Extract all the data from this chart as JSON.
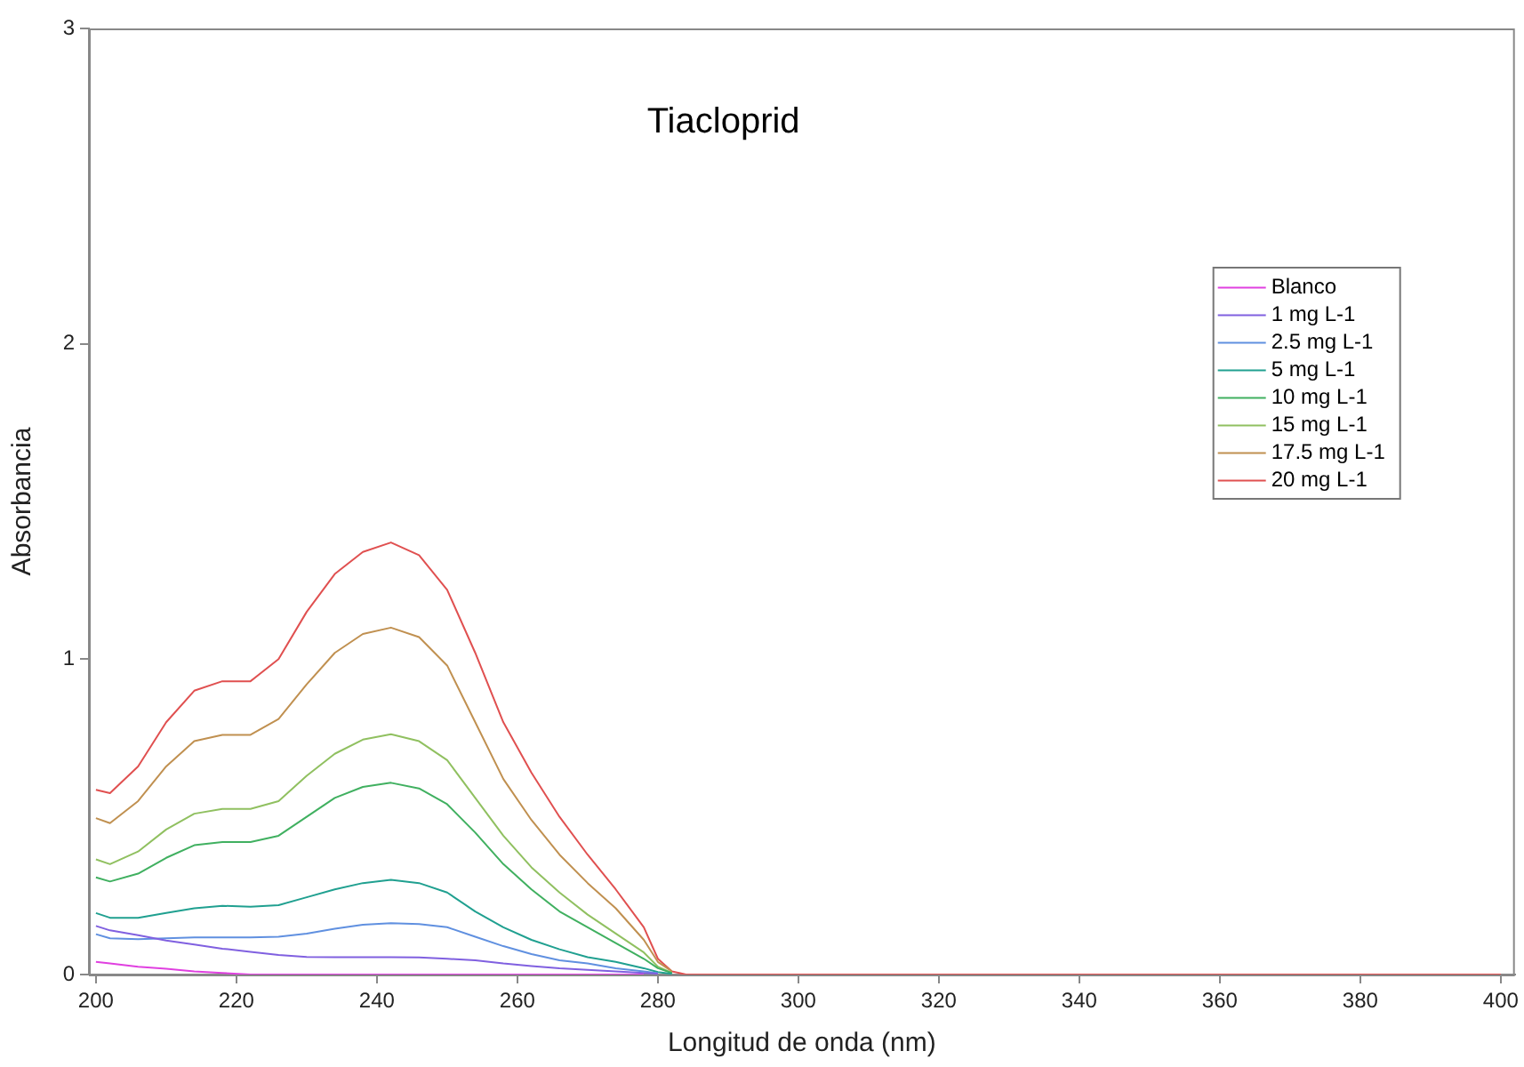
{
  "chart_data": {
    "type": "line",
    "title": "Tiacloprid",
    "xlabel": "Longitud de onda (nm)",
    "ylabel": "Absorbancia",
    "x": [
      200,
      202,
      206,
      210,
      214,
      218,
      222,
      226,
      230,
      234,
      238,
      242,
      246,
      250,
      254,
      258,
      262,
      266,
      270,
      274,
      278,
      280,
      282,
      284,
      286,
      290,
      300,
      320,
      340,
      360,
      380,
      400
    ],
    "series": [
      {
        "name": "Blanco",
        "color": "#e040e0",
        "values": [
          0.04,
          0.035,
          0.025,
          0.018,
          0.01,
          0.005,
          0,
          0,
          0,
          0,
          0,
          0,
          0,
          0,
          0,
          0,
          0,
          0,
          0,
          0,
          0,
          null,
          null,
          null,
          null,
          null,
          null,
          null,
          null,
          null,
          null,
          null
        ]
      },
      {
        "name": "1 mg L-1",
        "color": "#8060e0",
        "values": [
          0.154,
          0.14,
          0.125,
          0.108,
          0.095,
          0.082,
          0.072,
          0.062,
          0.056,
          0.055,
          0.055,
          0.055,
          0.054,
          0.05,
          0.045,
          0.035,
          0.027,
          0.02,
          0.015,
          0.01,
          0.005,
          0.003,
          null,
          null,
          null,
          null,
          null,
          null,
          null,
          null,
          null,
          null
        ]
      },
      {
        "name": "2.5 mg L-1",
        "color": "#6090e0",
        "values": [
          0.128,
          0.115,
          0.112,
          0.115,
          0.118,
          0.118,
          0.118,
          0.12,
          0.13,
          0.145,
          0.158,
          0.163,
          0.16,
          0.15,
          0.12,
          0.09,
          0.065,
          0.045,
          0.035,
          0.02,
          0.01,
          0.004,
          null,
          null,
          null,
          null,
          null,
          null,
          null,
          null,
          null,
          null
        ]
      },
      {
        "name": "5 mg L-1",
        "color": "#20a090",
        "values": [
          0.195,
          0.18,
          0.18,
          0.195,
          0.21,
          0.218,
          0.215,
          0.22,
          0.245,
          0.27,
          0.29,
          0.3,
          0.29,
          0.26,
          0.2,
          0.15,
          0.11,
          0.08,
          0.055,
          0.04,
          0.02,
          0.008,
          0.002,
          null,
          null,
          null,
          null,
          null,
          null,
          null,
          null,
          null
        ]
      },
      {
        "name": "10 mg L-1",
        "color": "#40b060",
        "values": [
          0.308,
          0.295,
          0.32,
          0.37,
          0.41,
          0.42,
          0.42,
          0.44,
          0.5,
          0.56,
          0.595,
          0.608,
          0.59,
          0.54,
          0.45,
          0.35,
          0.27,
          0.2,
          0.15,
          0.1,
          0.05,
          0.02,
          0.005,
          null,
          null,
          null,
          null,
          null,
          null,
          null,
          null,
          null
        ]
      },
      {
        "name": "15 mg L-1",
        "color": "#90c060",
        "values": [
          0.365,
          0.35,
          0.39,
          0.46,
          0.51,
          0.525,
          0.525,
          0.55,
          0.63,
          0.7,
          0.745,
          0.762,
          0.74,
          0.68,
          0.56,
          0.44,
          0.34,
          0.26,
          0.19,
          0.13,
          0.07,
          0.025,
          0.005,
          null,
          null,
          null,
          null,
          null,
          null,
          null,
          null,
          null
        ]
      },
      {
        "name": "17.5 mg L-1",
        "color": "#c09050",
        "values": [
          0.496,
          0.48,
          0.55,
          0.66,
          0.74,
          0.76,
          0.76,
          0.81,
          0.92,
          1.02,
          1.08,
          1.1,
          1.07,
          0.98,
          0.8,
          0.62,
          0.49,
          0.38,
          0.29,
          0.21,
          0.11,
          0.04,
          0.01,
          null,
          null,
          null,
          null,
          null,
          null,
          null,
          null,
          null
        ]
      },
      {
        "name": "20 mg L-1",
        "color": "#e05050",
        "values": [
          0.586,
          0.575,
          0.66,
          0.8,
          0.9,
          0.93,
          0.93,
          1.0,
          1.15,
          1.27,
          1.34,
          1.37,
          1.33,
          1.22,
          1.02,
          0.8,
          0.64,
          0.5,
          0.38,
          0.27,
          0.15,
          0.05,
          0.01,
          0,
          0,
          0,
          0,
          0,
          0,
          0,
          0,
          0
        ]
      }
    ],
    "xlim": [
      199,
      402
    ],
    "xticks": [
      200,
      220,
      240,
      260,
      280,
      300,
      320,
      340,
      360,
      380,
      400
    ],
    "ylim": [
      0,
      3
    ],
    "yticks": [
      0,
      1,
      2,
      3
    ],
    "grid": false,
    "legend": "top right",
    "marker": "none",
    "line_style": "solid"
  }
}
